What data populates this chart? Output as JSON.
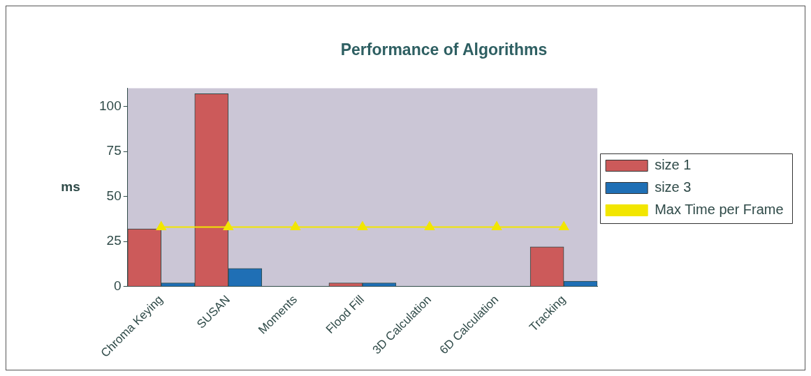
{
  "chart_data": {
    "type": "bar",
    "title": "Performance of Algorithms",
    "ylabel": "ms",
    "categories": [
      "Chroma Keying",
      "SUSAN",
      "Moments",
      "Flood Fill",
      "3D Calculation",
      "6D Calculation",
      "Tracking"
    ],
    "series": [
      {
        "name": "size 1",
        "color": "#cc5a5a",
        "values": [
          32,
          107,
          0,
          2,
          0,
          0,
          22
        ]
      },
      {
        "name": "size 3",
        "color": "#1f6fb5",
        "values": [
          2,
          10,
          0,
          2,
          0,
          0,
          3
        ]
      },
      {
        "name": "Max Time per Frame",
        "type": "line",
        "color": "#f2e600",
        "marker": "triangle",
        "values": [
          33,
          33,
          33,
          33,
          33,
          33,
          33
        ]
      }
    ],
    "ylim": [
      0,
      110
    ],
    "yticks": [
      0,
      25,
      50,
      75,
      100
    ],
    "grid": false,
    "legend": "right"
  }
}
